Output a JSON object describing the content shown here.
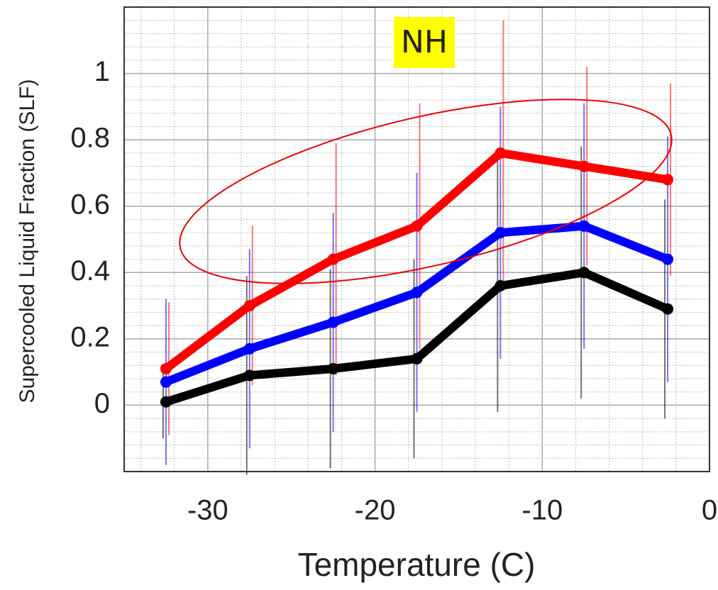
{
  "chart_data": {
    "type": "line",
    "annotation": "NH",
    "xlabel": "Temperature (C)",
    "ylabel": "Supercooled Liquid Fraction (SLF)",
    "x": [
      -32.5,
      -27.5,
      -22.5,
      -17.5,
      -12.5,
      -7.5,
      -2.5
    ],
    "series": [
      {
        "color": "#000000",
        "values": [
          0.01,
          0.09,
          0.11,
          0.14,
          0.36,
          0.4,
          0.29
        ],
        "errors": [
          0.11,
          0.3,
          0.3,
          0.3,
          0.38,
          0.38,
          0.33
        ]
      },
      {
        "color": "#0000ff",
        "values": [
          0.07,
          0.17,
          0.25,
          0.34,
          0.52,
          0.54,
          0.44
        ],
        "errors": [
          0.25,
          0.3,
          0.33,
          0.36,
          0.38,
          0.37,
          0.37
        ]
      },
      {
        "color": "#ff0000",
        "values": [
          0.11,
          0.3,
          0.44,
          0.54,
          0.76,
          0.72,
          0.68
        ],
        "errors": [
          0.2,
          0.24,
          0.35,
          0.37,
          0.4,
          0.3,
          0.29
        ]
      }
    ],
    "xlim": [
      -35,
      0
    ],
    "ylim": [
      -0.2,
      1.2
    ],
    "xticks": [
      -30,
      -20,
      -10,
      0
    ],
    "yticks": [
      0,
      0.2,
      0.4,
      0.6,
      0.8,
      1
    ],
    "grid": true,
    "minor_grid": true
  }
}
